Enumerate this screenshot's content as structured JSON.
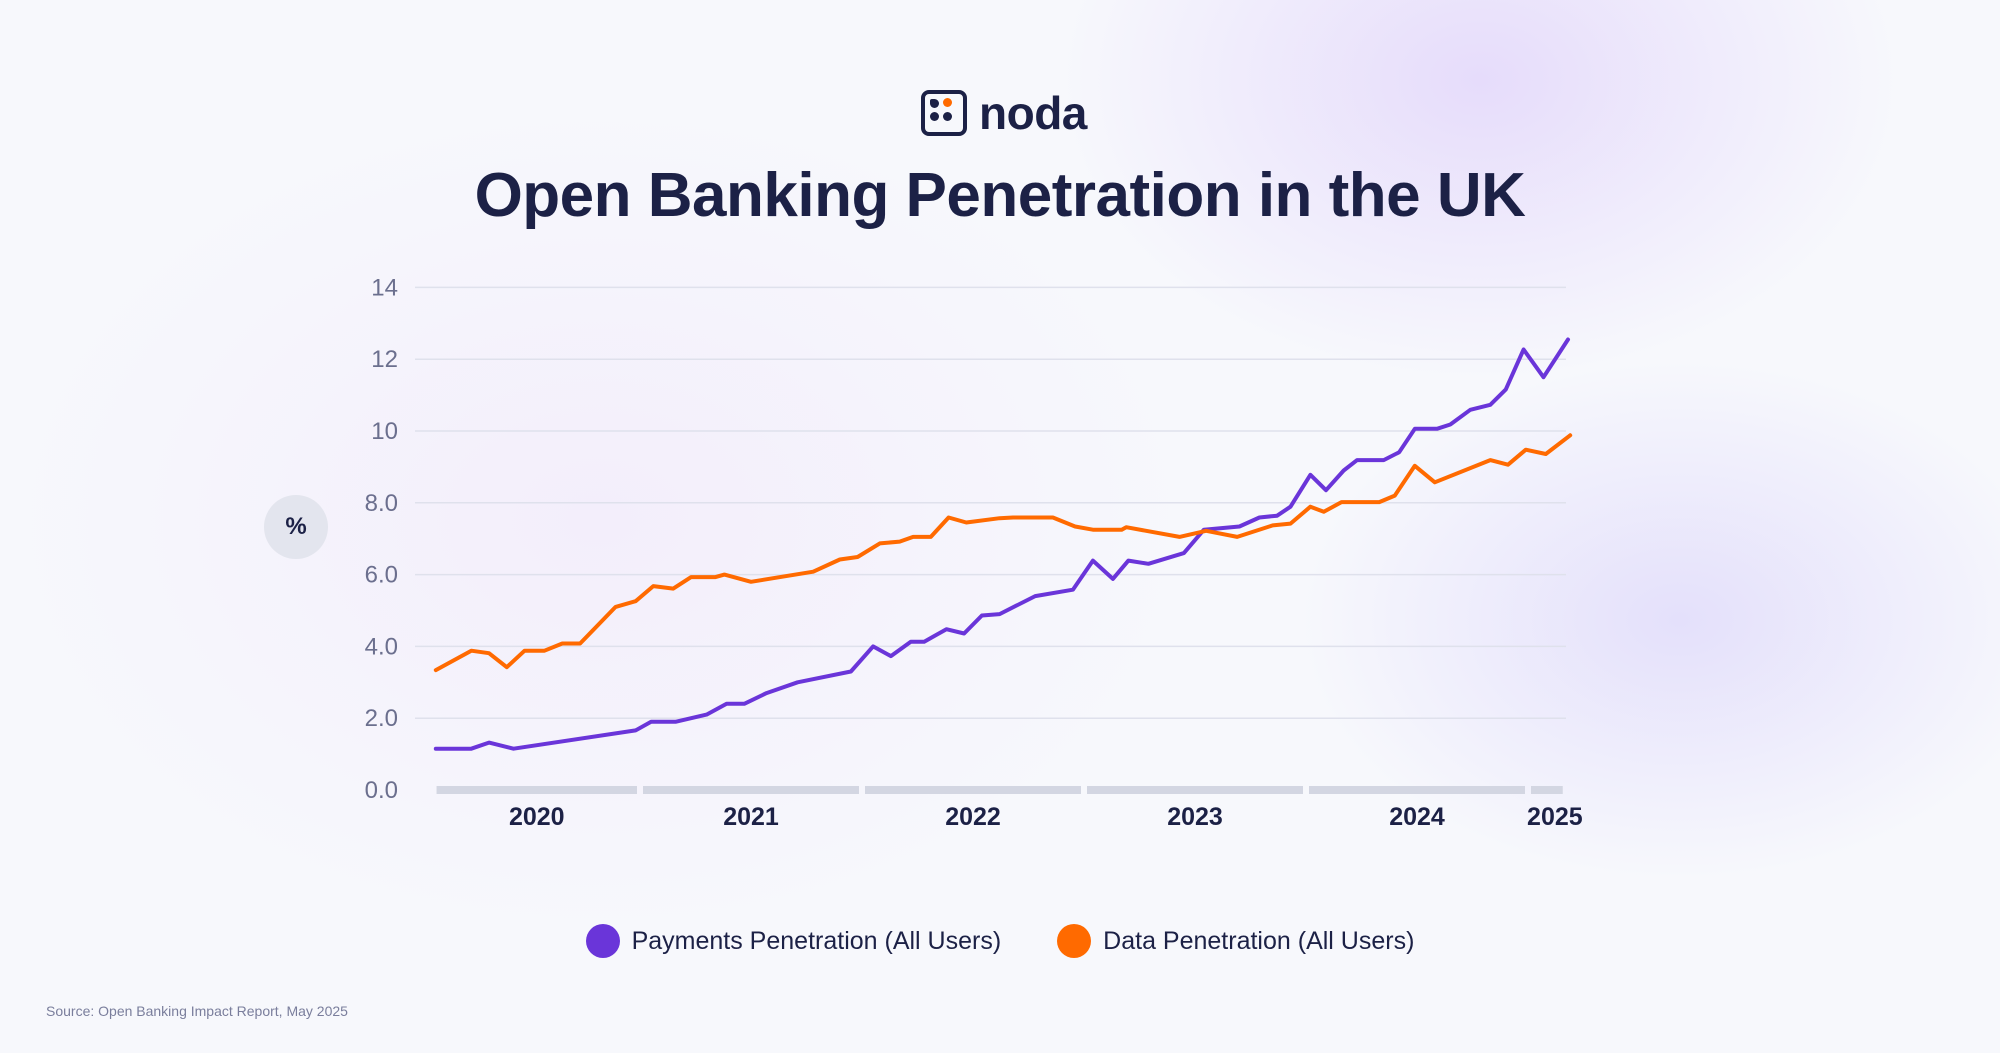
{
  "brand": {
    "name": "noda",
    "accent": "#ff6a00",
    "dark": "#1c2146"
  },
  "title": "Open Banking Penetration in the UK",
  "unit_label": "%",
  "source": "Source: Open Banking Impact Report, May 2025",
  "chart_data": {
    "type": "line",
    "title": "Open Banking Penetration in the UK",
    "xlabel": "",
    "ylabel": "%",
    "ylim": [
      0,
      14
    ],
    "xlim": [
      2020.0,
      2025.2
    ],
    "yticks": [
      "0.0",
      "2.0",
      "4.0",
      "6.0",
      "8.0",
      "10",
      "12",
      "14"
    ],
    "ytick_values": [
      0,
      2,
      4,
      6,
      8,
      10,
      12,
      14
    ],
    "xticks": [
      "2020",
      "2021",
      "2022",
      "2023",
      "2024",
      "2025"
    ],
    "grid": true,
    "legend": "bottom",
    "series": [
      {
        "name": "Payments Penetration (All Users)",
        "color": "#6a35d9",
        "points": [
          [
            2020.08,
            1.15
          ],
          [
            2020.24,
            1.15
          ],
          [
            2020.32,
            1.32
          ],
          [
            2020.43,
            1.15
          ],
          [
            2020.98,
            1.66
          ],
          [
            2021.05,
            1.9
          ],
          [
            2021.16,
            1.9
          ],
          [
            2021.3,
            2.1
          ],
          [
            2021.39,
            2.4
          ],
          [
            2021.47,
            2.4
          ],
          [
            2021.57,
            2.7
          ],
          [
            2021.71,
            3.0
          ],
          [
            2021.95,
            3.3
          ],
          [
            2022.05,
            4.0
          ],
          [
            2022.13,
            3.73
          ],
          [
            2022.22,
            4.13
          ],
          [
            2022.28,
            4.13
          ],
          [
            2022.38,
            4.48
          ],
          [
            2022.46,
            4.36
          ],
          [
            2022.54,
            4.86
          ],
          [
            2022.62,
            4.9
          ],
          [
            2022.78,
            5.4
          ],
          [
            2022.95,
            5.58
          ],
          [
            2023.04,
            6.39
          ],
          [
            2023.13,
            5.88
          ],
          [
            2023.2,
            6.39
          ],
          [
            2023.29,
            6.3
          ],
          [
            2023.45,
            6.6
          ],
          [
            2023.54,
            7.25
          ],
          [
            2023.7,
            7.34
          ],
          [
            2023.79,
            7.59
          ],
          [
            2023.87,
            7.64
          ],
          [
            2023.93,
            7.89
          ],
          [
            2024.02,
            8.78
          ],
          [
            2024.09,
            8.35
          ],
          [
            2024.17,
            8.9
          ],
          [
            2024.23,
            9.19
          ],
          [
            2024.35,
            9.19
          ],
          [
            2024.42,
            9.41
          ],
          [
            2024.49,
            10.06
          ],
          [
            2024.59,
            10.06
          ],
          [
            2024.65,
            10.18
          ],
          [
            2024.74,
            10.59
          ],
          [
            2024.83,
            10.73
          ],
          [
            2024.9,
            11.16
          ],
          [
            2024.98,
            12.27
          ],
          [
            2025.07,
            11.5
          ],
          [
            2025.18,
            12.55
          ]
        ]
      },
      {
        "name": "Data Penetration (All Users)",
        "color": "#ff6a00",
        "points": [
          [
            2020.08,
            3.34
          ],
          [
            2020.24,
            3.88
          ],
          [
            2020.32,
            3.81
          ],
          [
            2020.4,
            3.42
          ],
          [
            2020.48,
            3.88
          ],
          [
            2020.57,
            3.88
          ],
          [
            2020.65,
            4.08
          ],
          [
            2020.73,
            4.08
          ],
          [
            2020.89,
            5.1
          ],
          [
            2020.98,
            5.26
          ],
          [
            2021.06,
            5.68
          ],
          [
            2021.15,
            5.61
          ],
          [
            2021.23,
            5.93
          ],
          [
            2021.34,
            5.93
          ],
          [
            2021.38,
            6.0
          ],
          [
            2021.5,
            5.8
          ],
          [
            2021.78,
            6.08
          ],
          [
            2021.9,
            6.42
          ],
          [
            2021.98,
            6.49
          ],
          [
            2022.08,
            6.87
          ],
          [
            2022.17,
            6.92
          ],
          [
            2022.23,
            7.05
          ],
          [
            2022.31,
            7.05
          ],
          [
            2022.39,
            7.59
          ],
          [
            2022.47,
            7.45
          ],
          [
            2022.62,
            7.57
          ],
          [
            2022.68,
            7.59
          ],
          [
            2022.86,
            7.59
          ],
          [
            2022.96,
            7.34
          ],
          [
            2023.04,
            7.25
          ],
          [
            2023.17,
            7.25
          ],
          [
            2023.19,
            7.32
          ],
          [
            2023.43,
            7.05
          ],
          [
            2023.55,
            7.22
          ],
          [
            2023.69,
            7.05
          ],
          [
            2023.85,
            7.37
          ],
          [
            2023.93,
            7.42
          ],
          [
            2024.02,
            7.89
          ],
          [
            2024.08,
            7.75
          ],
          [
            2024.16,
            8.02
          ],
          [
            2024.33,
            8.02
          ],
          [
            2024.4,
            8.2
          ],
          [
            2024.49,
            9.03
          ],
          [
            2024.58,
            8.57
          ],
          [
            2024.83,
            9.19
          ],
          [
            2024.91,
            9.06
          ],
          [
            2024.99,
            9.48
          ],
          [
            2025.08,
            9.36
          ],
          [
            2025.19,
            9.88
          ]
        ]
      }
    ]
  }
}
